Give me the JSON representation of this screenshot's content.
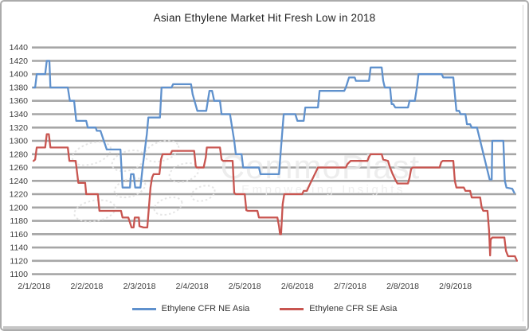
{
  "colors": {
    "background": "#ffffff",
    "border": "#ababab",
    "gridline": "#a6a6a6",
    "axis_text": "#3d3d3d",
    "title_text": "#1f1f1f",
    "legend_text": "#333333",
    "bottom_strip": "#c6c6c6"
  },
  "chart_data": {
    "type": "line",
    "title": "Asian Ethylene Market Hit Fresh Low in 2018",
    "x_tick_labels": [
      "2/1/2018",
      "2/2/2018",
      "2/3/2018",
      "2/4/2018",
      "2/5/2018",
      "2/6/2018",
      "2/7/2018",
      "2/8/2018",
      "2/9/2018"
    ],
    "x_unit": "tick index (i-th x label at x = i)",
    "x_range": [
      -0.05,
      9.2
    ],
    "ylim": [
      1100,
      1440
    ],
    "y_tick_step": 20,
    "grid": true,
    "legend_position": "bottom",
    "watermark": {
      "text": "CommoPlast",
      "subtext": "Empowering Insights",
      "text_color": "#e8e8e8",
      "sub_color": "#ececec",
      "ellipse_color": "#e0e0e0"
    },
    "series": [
      {
        "id": "ne-asia",
        "name": "Ethylene CFR NE Asia",
        "color": "#5f91cd",
        "points": [
          [
            -0.01,
            1380
          ],
          [
            0.02,
            1380
          ],
          [
            0.05,
            1400
          ],
          [
            0.21,
            1400
          ],
          [
            0.24,
            1420
          ],
          [
            0.29,
            1420
          ],
          [
            0.31,
            1380
          ],
          [
            0.64,
            1380
          ],
          [
            0.68,
            1360
          ],
          [
            0.76,
            1360
          ],
          [
            0.8,
            1330
          ],
          [
            0.99,
            1330
          ],
          [
            1.02,
            1320
          ],
          [
            1.17,
            1320
          ],
          [
            1.19,
            1315
          ],
          [
            1.26,
            1315
          ],
          [
            1.38,
            1287
          ],
          [
            1.64,
            1287
          ],
          [
            1.68,
            1230
          ],
          [
            1.82,
            1230
          ],
          [
            1.84,
            1250
          ],
          [
            1.89,
            1250
          ],
          [
            1.92,
            1230
          ],
          [
            2.02,
            1230
          ],
          [
            2.06,
            1260
          ],
          [
            2.14,
            1310
          ],
          [
            2.17,
            1335
          ],
          [
            2.39,
            1335
          ],
          [
            2.42,
            1380
          ],
          [
            2.61,
            1380
          ],
          [
            2.64,
            1385
          ],
          [
            2.98,
            1385
          ],
          [
            3.01,
            1370
          ],
          [
            3.1,
            1345
          ],
          [
            3.27,
            1345
          ],
          [
            3.3,
            1360
          ],
          [
            3.33,
            1375
          ],
          [
            3.38,
            1375
          ],
          [
            3.42,
            1360
          ],
          [
            3.53,
            1360
          ],
          [
            3.56,
            1340
          ],
          [
            3.72,
            1340
          ],
          [
            3.8,
            1300
          ],
          [
            3.83,
            1280
          ],
          [
            3.94,
            1280
          ],
          [
            3.97,
            1260
          ],
          [
            4.27,
            1260
          ],
          [
            4.3,
            1250
          ],
          [
            4.65,
            1250
          ],
          [
            4.68,
            1280
          ],
          [
            4.74,
            1340
          ],
          [
            4.96,
            1340
          ],
          [
            5.0,
            1330
          ],
          [
            5.12,
            1330
          ],
          [
            5.15,
            1350
          ],
          [
            5.39,
            1350
          ],
          [
            5.42,
            1375
          ],
          [
            5.89,
            1375
          ],
          [
            5.92,
            1380
          ],
          [
            5.98,
            1395
          ],
          [
            6.09,
            1395
          ],
          [
            6.11,
            1390
          ],
          [
            6.36,
            1390
          ],
          [
            6.39,
            1410
          ],
          [
            6.6,
            1410
          ],
          [
            6.63,
            1390
          ],
          [
            6.66,
            1380
          ],
          [
            6.76,
            1380
          ],
          [
            6.79,
            1355
          ],
          [
            6.82,
            1355
          ],
          [
            6.86,
            1350
          ],
          [
            7.1,
            1350
          ],
          [
            7.13,
            1360
          ],
          [
            7.23,
            1360
          ],
          [
            7.27,
            1380
          ],
          [
            7.3,
            1400
          ],
          [
            7.74,
            1400
          ],
          [
            7.77,
            1395
          ],
          [
            7.96,
            1395
          ],
          [
            7.99,
            1370
          ],
          [
            8.02,
            1345
          ],
          [
            8.07,
            1345
          ],
          [
            8.1,
            1340
          ],
          [
            8.19,
            1340
          ],
          [
            8.22,
            1325
          ],
          [
            8.28,
            1325
          ],
          [
            8.31,
            1320
          ],
          [
            8.41,
            1320
          ],
          [
            8.65,
            1242
          ],
          [
            8.69,
            1242
          ],
          [
            8.7,
            1300
          ],
          [
            8.91,
            1300
          ],
          [
            8.94,
            1240
          ],
          [
            8.97,
            1230
          ],
          [
            9.08,
            1228
          ],
          [
            9.12,
            1222
          ]
        ]
      },
      {
        "id": "se-asia",
        "name": "Ethylene CFR SE Asia",
        "color": "#c85550",
        "points": [
          [
            -0.01,
            1270
          ],
          [
            0.02,
            1272
          ],
          [
            0.05,
            1290
          ],
          [
            0.21,
            1290
          ],
          [
            0.24,
            1310
          ],
          [
            0.28,
            1310
          ],
          [
            0.31,
            1290
          ],
          [
            0.64,
            1290
          ],
          [
            0.67,
            1270
          ],
          [
            0.79,
            1270
          ],
          [
            0.82,
            1250
          ],
          [
            0.84,
            1237
          ],
          [
            0.97,
            1237
          ],
          [
            0.99,
            1220
          ],
          [
            1.21,
            1220
          ],
          [
            1.24,
            1195
          ],
          [
            1.65,
            1195
          ],
          [
            1.68,
            1185
          ],
          [
            1.79,
            1185
          ],
          [
            1.85,
            1170
          ],
          [
            1.89,
            1170
          ],
          [
            1.91,
            1185
          ],
          [
            1.99,
            1185
          ],
          [
            2.0,
            1172
          ],
          [
            2.08,
            1170
          ],
          [
            2.15,
            1170
          ],
          [
            2.21,
            1230
          ],
          [
            2.24,
            1245
          ],
          [
            2.27,
            1250
          ],
          [
            2.38,
            1250
          ],
          [
            2.41,
            1272
          ],
          [
            2.44,
            1280
          ],
          [
            2.59,
            1280
          ],
          [
            2.62,
            1285
          ],
          [
            3.04,
            1285
          ],
          [
            3.07,
            1262
          ],
          [
            3.09,
            1260
          ],
          [
            3.22,
            1260
          ],
          [
            3.26,
            1275
          ],
          [
            3.28,
            1290
          ],
          [
            3.53,
            1290
          ],
          [
            3.56,
            1272
          ],
          [
            3.59,
            1270
          ],
          [
            3.77,
            1270
          ],
          [
            3.8,
            1222
          ],
          [
            3.83,
            1220
          ],
          [
            4.0,
            1220
          ],
          [
            4.03,
            1196
          ],
          [
            4.06,
            1195
          ],
          [
            4.24,
            1195
          ],
          [
            4.27,
            1185
          ],
          [
            4.62,
            1185
          ],
          [
            4.65,
            1172
          ],
          [
            4.67,
            1160
          ],
          [
            4.69,
            1160
          ],
          [
            4.72,
            1205
          ],
          [
            4.75,
            1220
          ],
          [
            5.09,
            1220
          ],
          [
            5.12,
            1225
          ],
          [
            5.18,
            1225
          ],
          [
            5.22,
            1232
          ],
          [
            5.36,
            1255
          ],
          [
            5.39,
            1260
          ],
          [
            5.92,
            1260
          ],
          [
            5.95,
            1265
          ],
          [
            6.01,
            1270
          ],
          [
            6.33,
            1270
          ],
          [
            6.36,
            1276
          ],
          [
            6.39,
            1280
          ],
          [
            6.6,
            1280
          ],
          [
            6.63,
            1272
          ],
          [
            6.72,
            1270
          ],
          [
            6.75,
            1262
          ],
          [
            6.81,
            1250
          ],
          [
            6.87,
            1240
          ],
          [
            6.9,
            1236
          ],
          [
            7.1,
            1236
          ],
          [
            7.13,
            1245
          ],
          [
            7.16,
            1258
          ],
          [
            7.19,
            1260
          ],
          [
            7.7,
            1260
          ],
          [
            7.73,
            1268
          ],
          [
            7.76,
            1270
          ],
          [
            7.96,
            1270
          ],
          [
            7.99,
            1240
          ],
          [
            8.02,
            1230
          ],
          [
            8.16,
            1230
          ],
          [
            8.19,
            1225
          ],
          [
            8.28,
            1225
          ],
          [
            8.31,
            1215
          ],
          [
            8.47,
            1215
          ],
          [
            8.5,
            1200
          ],
          [
            8.53,
            1195
          ],
          [
            8.61,
            1195
          ],
          [
            8.64,
            1165
          ],
          [
            8.66,
            1128
          ],
          [
            8.67,
            1152
          ],
          [
            8.7,
            1155
          ],
          [
            8.93,
            1155
          ],
          [
            8.96,
            1135
          ],
          [
            9.0,
            1127
          ],
          [
            9.13,
            1127
          ],
          [
            9.17,
            1120
          ]
        ]
      }
    ]
  }
}
